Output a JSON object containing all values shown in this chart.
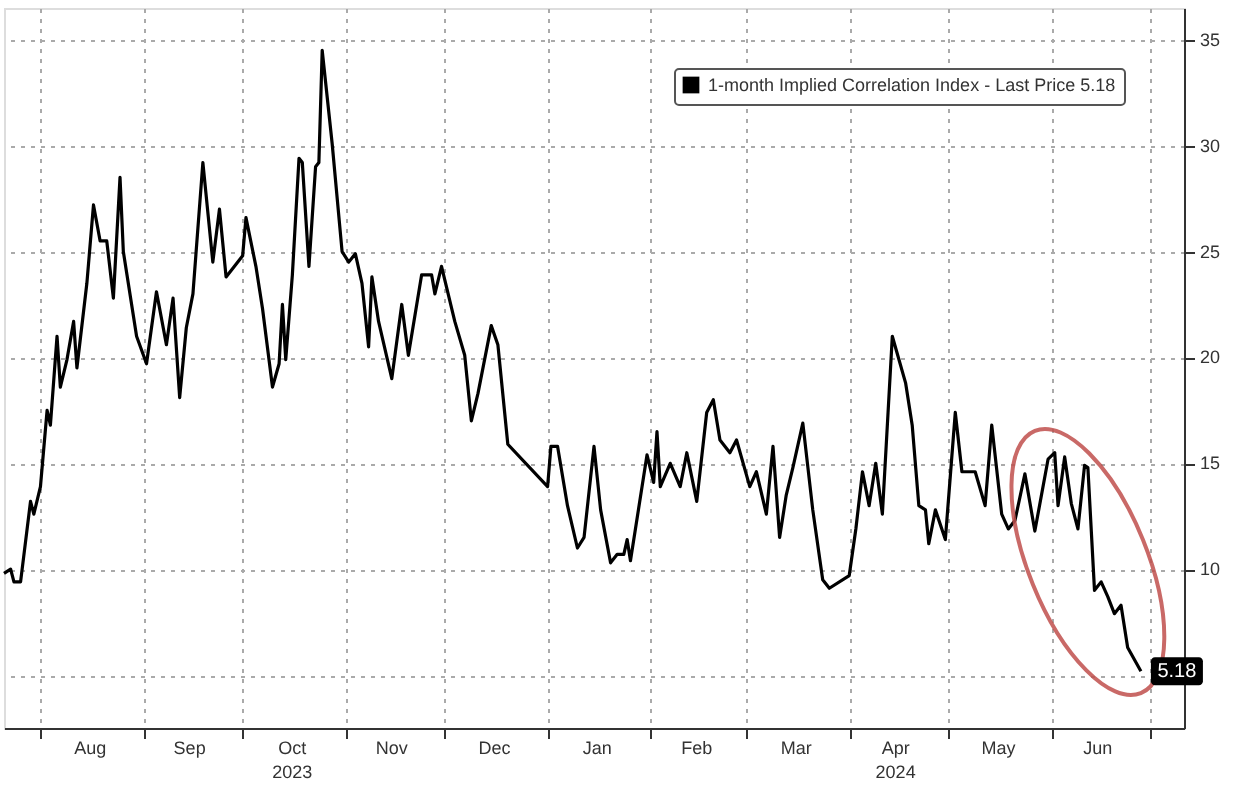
{
  "chart_data": {
    "type": "line",
    "x": [
      "2023-07-21",
      "2023-07-23",
      "2023-07-24",
      "2023-07-26",
      "2023-07-29",
      "2023-07-30",
      "2023-08-01",
      "2023-08-03",
      "2023-08-04",
      "2023-08-06",
      "2023-08-07",
      "2023-08-09",
      "2023-08-11",
      "2023-08-12",
      "2023-08-15",
      "2023-08-17",
      "2023-08-19",
      "2023-08-21",
      "2023-08-23",
      "2023-08-25",
      "2023-08-26",
      "2023-08-30",
      "2023-09-02",
      "2023-09-05",
      "2023-09-08",
      "2023-09-10",
      "2023-09-12",
      "2023-09-14",
      "2023-09-16",
      "2023-09-19",
      "2023-09-22",
      "2023-09-24",
      "2023-09-26",
      "2023-10-01",
      "2023-10-02",
      "2023-10-05",
      "2023-10-07",
      "2023-10-10",
      "2023-10-12",
      "2023-10-13",
      "2023-10-14",
      "2023-10-16",
      "2023-10-18",
      "2023-10-19",
      "2023-10-21",
      "2023-10-23",
      "2023-10-24",
      "2023-10-25",
      "2023-10-28",
      "2023-10-31",
      "2023-11-02",
      "2023-11-04",
      "2023-11-06",
      "2023-11-08",
      "2023-11-09",
      "2023-11-11",
      "2023-11-15",
      "2023-11-18",
      "2023-11-20",
      "2023-11-24",
      "2023-11-27",
      "2023-11-28",
      "2023-11-30",
      "2023-12-04",
      "2023-12-07",
      "2023-12-09",
      "2023-12-11",
      "2023-12-15",
      "2023-12-17",
      "2023-12-20",
      "2024-01-01",
      "2024-01-02",
      "2024-01-04",
      "2024-01-07",
      "2024-01-10",
      "2024-01-12",
      "2024-01-15",
      "2024-01-17",
      "2024-01-20",
      "2024-01-22",
      "2024-01-24",
      "2024-01-25",
      "2024-01-26",
      "2024-01-31",
      "2024-02-02",
      "2024-02-03",
      "2024-02-04",
      "2024-02-07",
      "2024-02-10",
      "2024-02-12",
      "2024-02-15",
      "2024-02-18",
      "2024-02-20",
      "2024-02-22",
      "2024-02-25",
      "2024-02-27",
      "2024-03-02",
      "2024-03-04",
      "2024-03-07",
      "2024-03-09",
      "2024-03-11",
      "2024-03-13",
      "2024-03-15",
      "2024-03-18",
      "2024-03-21",
      "2024-03-24",
      "2024-03-26",
      "2024-04-01",
      "2024-04-03",
      "2024-04-05",
      "2024-04-07",
      "2024-04-09",
      "2024-04-11",
      "2024-04-14",
      "2024-04-18",
      "2024-04-20",
      "2024-04-22",
      "2024-04-24",
      "2024-04-25",
      "2024-04-27",
      "2024-04-30",
      "2024-05-03",
      "2024-05-05",
      "2024-05-09",
      "2024-05-12",
      "2024-05-14",
      "2024-05-17",
      "2024-05-19",
      "2024-05-21",
      "2024-05-24",
      "2024-05-27",
      "2024-05-31",
      "2024-06-02",
      "2024-06-03",
      "2024-06-05",
      "2024-06-07",
      "2024-06-09",
      "2024-06-11",
      "2024-06-12",
      "2024-06-14",
      "2024-06-16",
      "2024-06-18",
      "2024-06-20",
      "2024-06-22",
      "2024-06-24",
      "2024-06-28"
    ],
    "series": [
      {
        "name": "1-month Implied Correlation Index - Last Price 5.18",
        "color": "#000000",
        "values": [
          9.8,
          10.0,
          9.4,
          9.4,
          13.2,
          12.6,
          13.9,
          17.5,
          16.8,
          21.0,
          18.6,
          19.9,
          21.7,
          19.5,
          23.5,
          27.2,
          25.5,
          25.5,
          22.8,
          28.5,
          25.0,
          21.0,
          19.7,
          23.1,
          20.6,
          22.8,
          18.1,
          21.4,
          23.0,
          29.2,
          24.5,
          27.0,
          23.8,
          24.8,
          26.6,
          24.3,
          22.3,
          18.6,
          19.7,
          22.5,
          19.9,
          23.9,
          29.4,
          29.2,
          24.3,
          29.0,
          29.2,
          34.5,
          30.1,
          25.0,
          24.5,
          24.9,
          23.5,
          20.5,
          23.8,
          21.7,
          19.0,
          22.5,
          20.1,
          23.9,
          23.9,
          23.0,
          24.3,
          21.7,
          20.1,
          17.0,
          18.3,
          21.5,
          20.6,
          15.9,
          13.9,
          15.8,
          15.8,
          13.0,
          11.0,
          11.5,
          15.8,
          12.8,
          10.3,
          10.7,
          10.7,
          11.4,
          10.4,
          15.4,
          14.1,
          16.5,
          13.9,
          15.0,
          13.9,
          15.5,
          13.2,
          17.4,
          18.0,
          16.1,
          15.5,
          16.1,
          13.9,
          14.6,
          12.6,
          15.8,
          11.5,
          13.5,
          14.8,
          16.9,
          12.8,
          9.5,
          9.1,
          9.7,
          11.9,
          14.6,
          13.0,
          15.0,
          12.6,
          21.0,
          18.8,
          16.8,
          13.0,
          12.8,
          11.2,
          12.8,
          11.4,
          17.4,
          14.6,
          14.6,
          13.0,
          16.8,
          12.6,
          11.9,
          12.3,
          14.5,
          11.8,
          15.2,
          15.5,
          13.0,
          15.3,
          13.1,
          11.9,
          14.9,
          14.8,
          9.0,
          9.4,
          8.7,
          7.9,
          8.3,
          6.3,
          5.18
        ],
        "value_labels": [
          null,
          null,
          null,
          null,
          null,
          null,
          null,
          null,
          null,
          null,
          null,
          null,
          null,
          null,
          null,
          null,
          null,
          null,
          null,
          null,
          null,
          null,
          null,
          null,
          null,
          null,
          null,
          null,
          null,
          null,
          null,
          null,
          null,
          null,
          null,
          null,
          null,
          null,
          null,
          null,
          null,
          null,
          null,
          null,
          null,
          null,
          null,
          null,
          null,
          null,
          null,
          null,
          null,
          null,
          null,
          null,
          null,
          null,
          null,
          null,
          null,
          null,
          null,
          null,
          null,
          null,
          null,
          null,
          null,
          null,
          null,
          null,
          null,
          null,
          null,
          null,
          null,
          null,
          null,
          null,
          null,
          null,
          null,
          null,
          null,
          null,
          null,
          null,
          null,
          null,
          null,
          null,
          null,
          null,
          null,
          null,
          null,
          null,
          null,
          null,
          null,
          null,
          null,
          null,
          null,
          null,
          null,
          null,
          null,
          null,
          null,
          null,
          null,
          null,
          null,
          null,
          null,
          null,
          null,
          null,
          null,
          null,
          null,
          null,
          null,
          null,
          null,
          null,
          null,
          null,
          null,
          null,
          null,
          null,
          null,
          null,
          null,
          null,
          null,
          null,
          null,
          null,
          null,
          null,
          null,
          "5.18"
        ]
      }
    ],
    "xlim": [
      "2023-07-21",
      "2024-07-11"
    ],
    "xticks": [
      {
        "value": "2023-08-01",
        "label": null
      },
      {
        "value": "2023-08-16",
        "label": "Aug"
      },
      {
        "value": "2023-09-01",
        "label": null
      },
      {
        "value": "2023-09-15",
        "label": "Sep"
      },
      {
        "value": "2023-10-01",
        "label": null
      },
      {
        "value": "2023-10-16",
        "label": "Oct\n2023"
      },
      {
        "value": "2023-11-01",
        "label": null
      },
      {
        "value": "2023-11-15",
        "label": "Nov"
      },
      {
        "value": "2023-12-01",
        "label": null
      },
      {
        "value": "2023-12-16",
        "label": "Dec"
      },
      {
        "value": "2024-01-01",
        "label": null
      },
      {
        "value": "2024-01-16",
        "label": "Jan"
      },
      {
        "value": "2024-02-01",
        "label": null
      },
      {
        "value": "2024-02-15",
        "label": "Feb"
      },
      {
        "value": "2024-03-01",
        "label": null
      },
      {
        "value": "2024-03-16",
        "label": "Mar"
      },
      {
        "value": "2024-04-01",
        "label": null
      },
      {
        "value": "2024-04-15",
        "label": "Apr\n2024"
      },
      {
        "value": "2024-05-01",
        "label": null
      },
      {
        "value": "2024-05-16",
        "label": "May"
      },
      {
        "value": "2024-06-01",
        "label": null
      },
      {
        "value": "2024-06-15",
        "label": "Jun"
      },
      {
        "value": "2024-07-01",
        "label": null
      }
    ],
    "ylim": [
      2.5,
      36.5
    ],
    "yticks": [
      {
        "value": 5,
        "label": null
      },
      10,
      15,
      20,
      25,
      30,
      35
    ],
    "grid": true,
    "legend": "top right",
    "marker": "none",
    "line_style": "solid"
  }
}
